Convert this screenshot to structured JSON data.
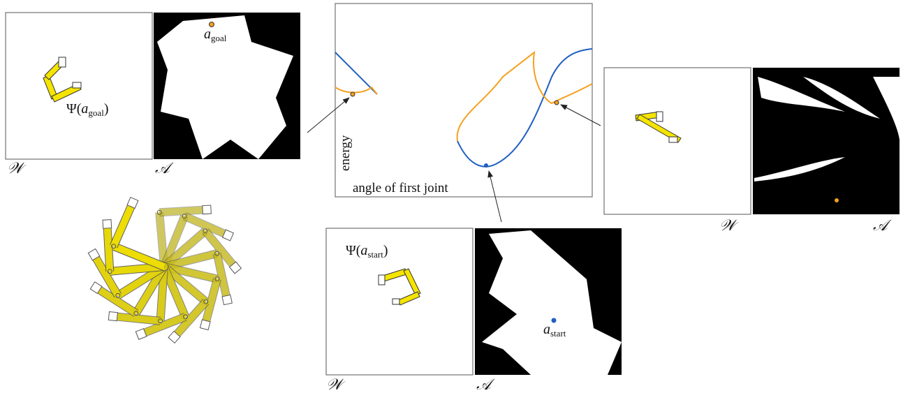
{
  "goal": {
    "workspace_label": "𝒲",
    "space_label": "𝒜",
    "point": {
      "symbol": "a",
      "subscript": "goal"
    },
    "config": {
      "open": "Ψ(",
      "symbol": "a",
      "subscript": "goal",
      "close": ")"
    }
  },
  "plot": {
    "y_label": "energy",
    "x_label": "angle of first joint"
  },
  "right": {
    "workspace_label": "𝒲",
    "space_label": "𝒜"
  },
  "start": {
    "workspace_label": "𝒲",
    "space_label": "𝒜",
    "point": {
      "symbol": "a",
      "subscript": "start"
    },
    "config": {
      "open": "Ψ(",
      "symbol": "a",
      "subscript": "start",
      "close": ")"
    }
  }
}
